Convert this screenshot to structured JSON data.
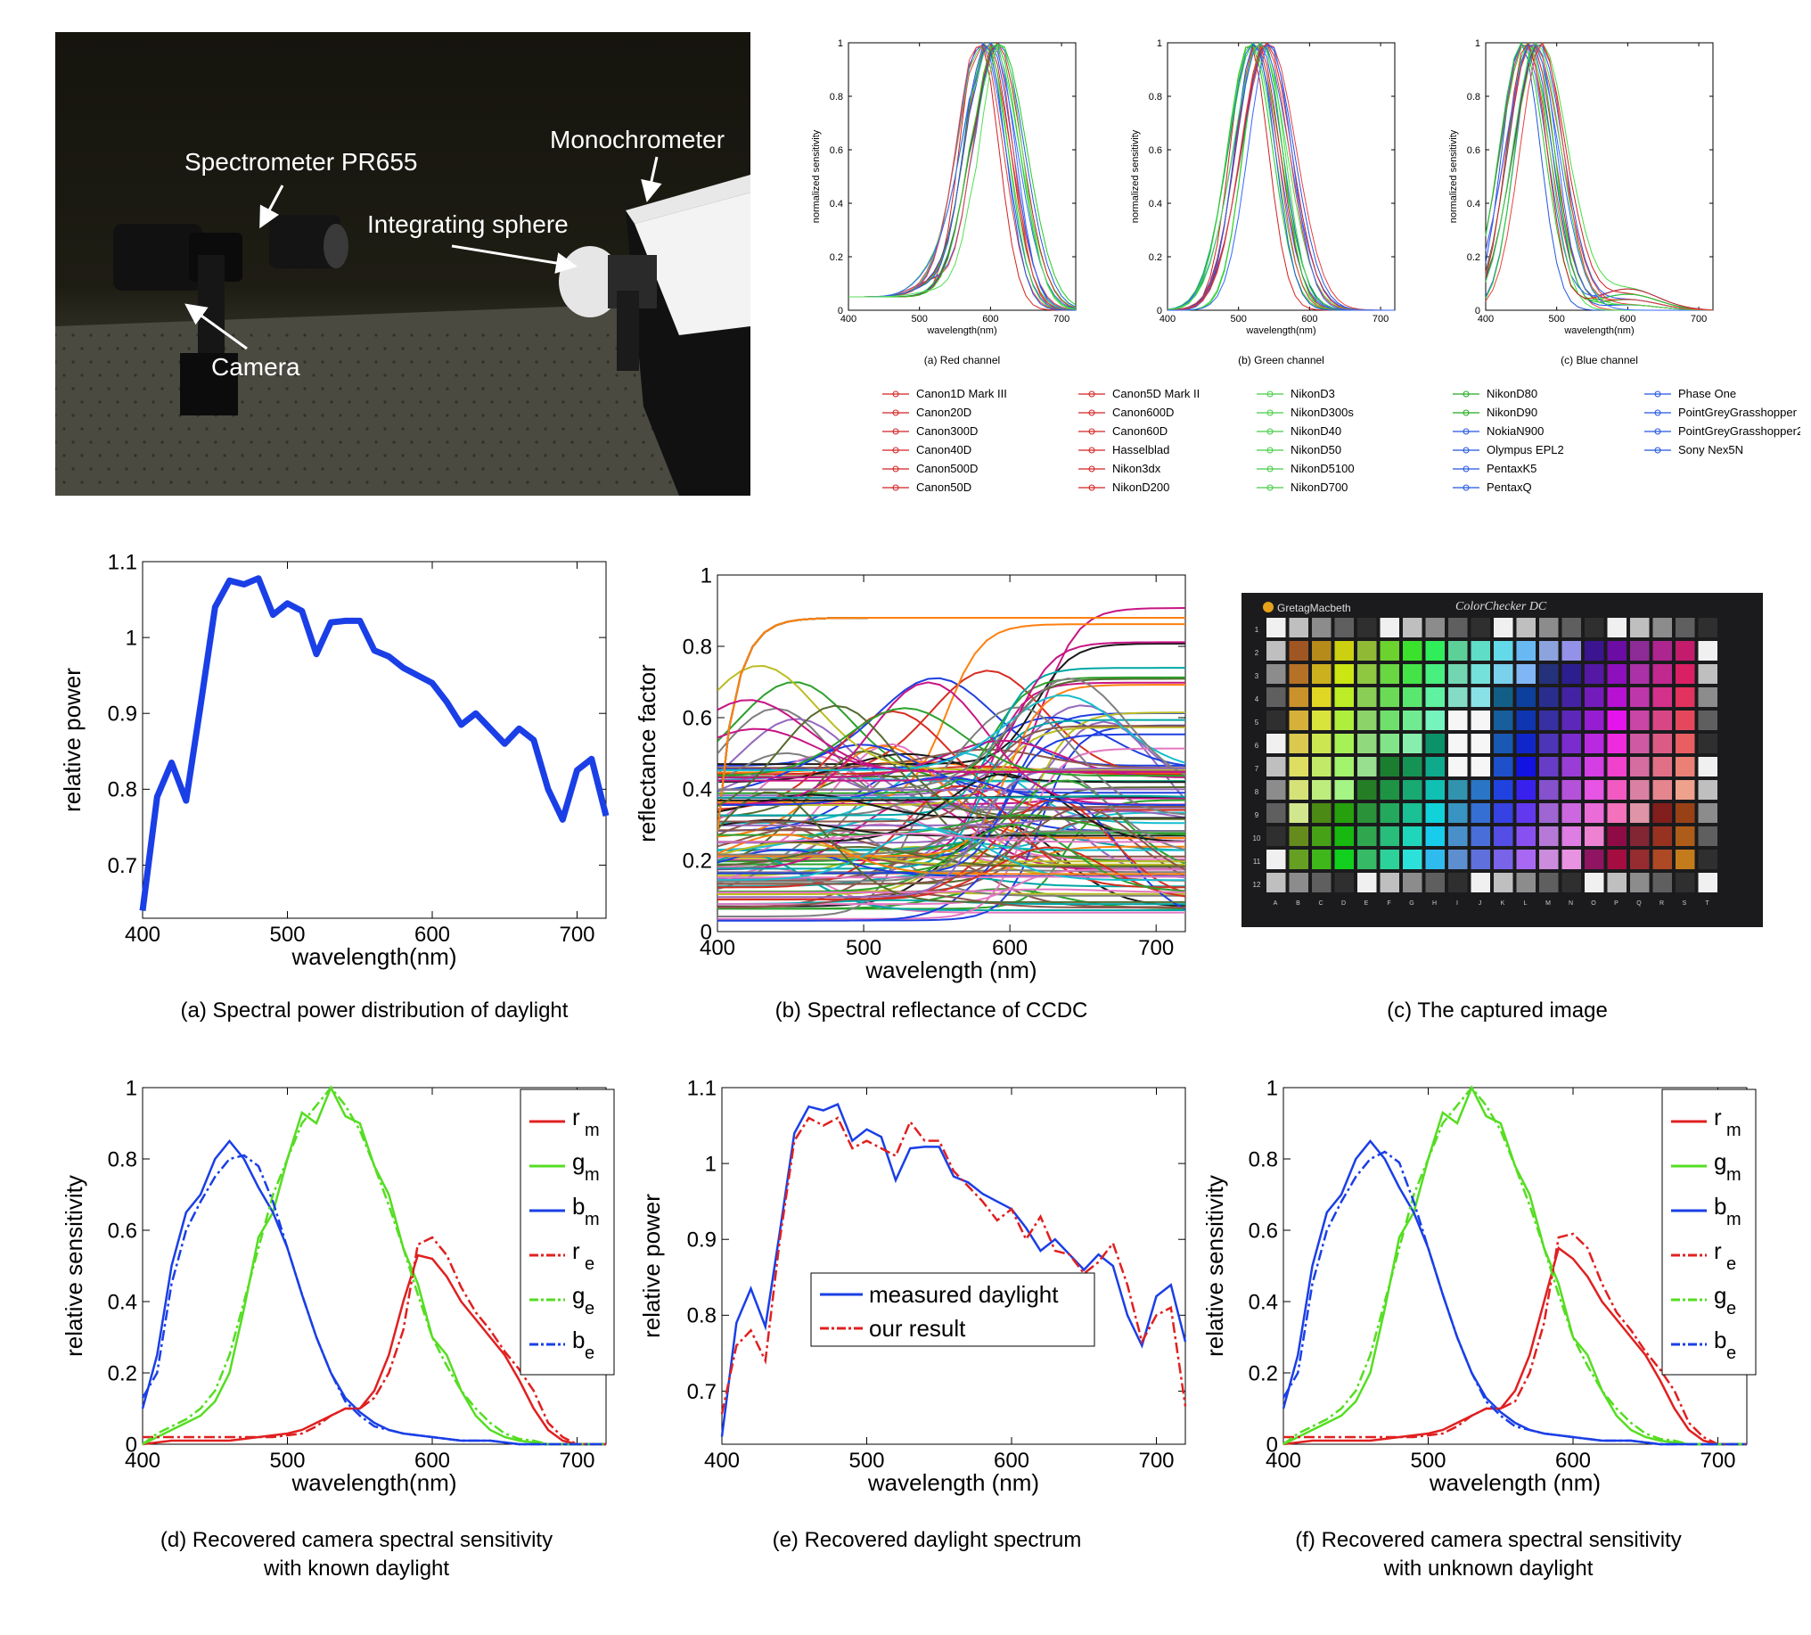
{
  "photo": {
    "labels": {
      "spectrometer": "Spectrometer PR655",
      "monochrometer": "Monochrometer",
      "integrating_sphere": "Integrating sphere",
      "camera": "Camera"
    }
  },
  "captions": {
    "a": "(a) Spectral power distribution of daylight",
    "b": "(b) Spectral reflectance of CCDC",
    "c": "(c) The captured image",
    "d_line1": "(d) Recovered camera spectral sensitivity",
    "d_line2": "with known daylight",
    "e": "(e) Recovered daylight spectrum",
    "f_line1": "(f) Recovered camera spectral sensitivity",
    "f_line2": "with unknown daylight"
  },
  "colorchecker": {
    "brand": "GretagMacbeth",
    "title": "ColorChecker DC",
    "rows": [
      "1",
      "2",
      "3",
      "4",
      "5",
      "6",
      "7",
      "8",
      "9",
      "10",
      "11",
      "12"
    ],
    "cols": [
      "A",
      "B",
      "C",
      "D",
      "E",
      "F",
      "G",
      "H",
      "I",
      "J",
      "K",
      "L",
      "M",
      "N",
      "O",
      "P",
      "Q",
      "R",
      "S",
      "T"
    ]
  },
  "chart_data": [
    {
      "id": "red-channel",
      "type": "line",
      "subtitle": "(a) Red channel",
      "xlabel": "wavelength(nm)",
      "ylabel": "normalized sensitivity",
      "xlim": [
        400,
        720
      ],
      "ylim": [
        0,
        1
      ],
      "xticks": [
        "400",
        "500",
        "600",
        "700"
      ],
      "yticks": [
        "0",
        "0.2",
        "0.4",
        "0.6",
        "0.8",
        "1"
      ],
      "note_series": "28 cameras, peaks ~590-610 nm"
    },
    {
      "id": "green-channel",
      "type": "line",
      "subtitle": "(b) Green channel",
      "xlabel": "wavelength(nm)",
      "ylabel": "normalized sensitivity",
      "xlim": [
        400,
        720
      ],
      "ylim": [
        0,
        1
      ],
      "xticks": [
        "400",
        "500",
        "600",
        "700"
      ],
      "yticks": [
        "0",
        "0.2",
        "0.4",
        "0.6",
        "0.8",
        "1"
      ]
    },
    {
      "id": "blue-channel",
      "type": "line",
      "subtitle": "(c) Blue channel",
      "xlabel": "wavelength(nm)",
      "ylabel": "normalized sensitivity",
      "xlim": [
        400,
        720
      ],
      "ylim": [
        0,
        1
      ],
      "xticks": [
        "400",
        "500",
        "600",
        "700"
      ],
      "yticks": [
        "0",
        "0.2",
        "0.4",
        "0.6",
        "0.8",
        "1"
      ]
    },
    {
      "id": "legend-cameras",
      "type": "legend",
      "entries": [
        "Canon1D Mark III",
        "Canon20D",
        "Canon300D",
        "Canon40D",
        "Canon500D",
        "Canon50D",
        "Canon5D Mark II",
        "Canon600D",
        "Canon60D",
        "Hasselblad",
        "Nikon3dx",
        "NikonD200",
        "NikonD3",
        "NikonD300s",
        "NikonD40",
        "NikonD50",
        "NikonD5100",
        "NikonD700",
        "NikonD80",
        "NikonD90",
        "NokiaN900",
        "Olympus EPL2",
        "PentaxK5",
        "PentaxQ",
        "Phase One",
        "PointGreyGrasshopper",
        "PointGreyGrasshopper2",
        "Sony Nex5N"
      ]
    },
    {
      "id": "daylight-spd",
      "type": "line",
      "xlabel": "wavelength(nm)",
      "ylabel": "relative power",
      "xlim": [
        400,
        720
      ],
      "ylim": [
        0.63,
        1.1
      ],
      "xticks": [
        "400",
        "500",
        "600",
        "700"
      ],
      "yticks": [
        "0.7",
        "0.8",
        "0.9",
        "1",
        "1.1"
      ],
      "x": [
        400,
        410,
        420,
        430,
        440,
        450,
        460,
        470,
        480,
        490,
        500,
        510,
        520,
        530,
        540,
        550,
        560,
        570,
        580,
        590,
        600,
        610,
        620,
        630,
        640,
        650,
        660,
        670,
        680,
        690,
        700,
        710,
        720
      ],
      "values": [
        0.64,
        0.79,
        0.835,
        0.785,
        0.91,
        1.04,
        1.075,
        1.07,
        1.078,
        1.03,
        1.045,
        1.035,
        0.978,
        1.02,
        1.022,
        1.022,
        0.983,
        0.975,
        0.96,
        0.95,
        0.94,
        0.915,
        0.885,
        0.9,
        0.88,
        0.86,
        0.88,
        0.865,
        0.8,
        0.76,
        0.825,
        0.84,
        0.765
      ]
    },
    {
      "id": "reflectance-ccdc",
      "type": "line",
      "xlabel": "wavelength (nm)",
      "ylabel": "reflectance factor",
      "xlim": [
        400,
        720
      ],
      "ylim": [
        0,
        1
      ],
      "xticks": [
        "400",
        "500",
        "600",
        "700"
      ],
      "yticks": [
        "0",
        "0.2",
        "0.4",
        "0.6",
        "0.8",
        "1"
      ]
    },
    {
      "id": "recovered-known",
      "type": "line",
      "xlabel": "wavelength(nm)",
      "ylabel": "relative sensitivity",
      "xlim": [
        400,
        720
      ],
      "ylim": [
        0,
        1
      ],
      "xticks": [
        "400",
        "500",
        "600",
        "700"
      ],
      "yticks": [
        "0",
        "0.2",
        "0.4",
        "0.6",
        "0.8",
        "1"
      ],
      "legend": [
        "r",
        "g",
        "b",
        "r",
        "g",
        "b"
      ],
      "legend_sub": [
        "m",
        "m",
        "m",
        "e",
        "e",
        "e"
      ],
      "x": [
        400,
        410,
        420,
        430,
        440,
        450,
        460,
        470,
        480,
        490,
        500,
        510,
        520,
        530,
        540,
        550,
        560,
        570,
        580,
        590,
        600,
        610,
        620,
        630,
        640,
        650,
        660,
        670,
        680,
        690,
        700,
        710,
        720
      ],
      "series": [
        {
          "values": [
            0,
            0.005,
            0.01,
            0.01,
            0.01,
            0.01,
            0.01,
            0.015,
            0.02,
            0.025,
            0.03,
            0.04,
            0.06,
            0.08,
            0.1,
            0.1,
            0.15,
            0.25,
            0.4,
            0.53,
            0.52,
            0.47,
            0.4,
            0.35,
            0.3,
            0.25,
            0.18,
            0.1,
            0.04,
            0.01,
            0,
            0,
            0
          ]
        },
        {
          "values": [
            0,
            0.02,
            0.04,
            0.06,
            0.08,
            0.12,
            0.2,
            0.38,
            0.58,
            0.65,
            0.8,
            0.93,
            0.9,
            1.0,
            0.92,
            0.9,
            0.78,
            0.7,
            0.55,
            0.45,
            0.3,
            0.25,
            0.15,
            0.08,
            0.04,
            0.02,
            0.01,
            0.005,
            0,
            0,
            0,
            0,
            0
          ]
        },
        {
          "values": [
            0.1,
            0.25,
            0.5,
            0.65,
            0.7,
            0.8,
            0.85,
            0.8,
            0.72,
            0.65,
            0.55,
            0.42,
            0.3,
            0.2,
            0.13,
            0.09,
            0.06,
            0.04,
            0.03,
            0.025,
            0.02,
            0.015,
            0.01,
            0.01,
            0.01,
            0.005,
            0,
            0,
            0,
            0,
            0,
            0,
            0
          ]
        },
        {
          "values": [
            0.02,
            0.02,
            0.02,
            0.02,
            0.02,
            0.02,
            0.02,
            0.02,
            0.02,
            0.02,
            0.025,
            0.03,
            0.05,
            0.08,
            0.1,
            0.1,
            0.13,
            0.2,
            0.32,
            0.56,
            0.58,
            0.53,
            0.44,
            0.37,
            0.32,
            0.26,
            0.21,
            0.15,
            0.06,
            0.02,
            0,
            0,
            0
          ]
        },
        {
          "values": [
            0,
            0.03,
            0.05,
            0.07,
            0.1,
            0.15,
            0.25,
            0.4,
            0.55,
            0.7,
            0.8,
            0.9,
            0.95,
            1.0,
            0.95,
            0.88,
            0.78,
            0.67,
            0.55,
            0.42,
            0.3,
            0.22,
            0.15,
            0.1,
            0.06,
            0.03,
            0.015,
            0.01,
            0,
            0,
            0,
            0,
            0
          ]
        },
        {
          "values": [
            0.13,
            0.2,
            0.45,
            0.6,
            0.68,
            0.75,
            0.8,
            0.81,
            0.78,
            0.68,
            0.55,
            0.42,
            0.3,
            0.2,
            0.12,
            0.08,
            0.05,
            0.04,
            0.03,
            0.025,
            0.02,
            0.015,
            0.01,
            0.01,
            0.01,
            0.005,
            0,
            0,
            0,
            0,
            0,
            0,
            0
          ]
        }
      ]
    },
    {
      "id": "recovered-daylight",
      "type": "line",
      "xlabel": "wavelength (nm)",
      "ylabel": "relative power",
      "xlim": [
        400,
        720
      ],
      "ylim": [
        0.63,
        1.1
      ],
      "xticks": [
        "400",
        "500",
        "600",
        "700"
      ],
      "yticks": [
        "0.7",
        "0.8",
        "0.9",
        "1",
        "1.1"
      ],
      "x": [
        400,
        410,
        420,
        430,
        440,
        450,
        460,
        470,
        480,
        490,
        500,
        510,
        520,
        530,
        540,
        550,
        560,
        570,
        580,
        590,
        600,
        610,
        620,
        630,
        640,
        650,
        660,
        670,
        680,
        690,
        700,
        710,
        720
      ],
      "series": [
        {
          "name": "measured daylight",
          "values": [
            0.64,
            0.79,
            0.835,
            0.785,
            0.91,
            1.04,
            1.075,
            1.07,
            1.078,
            1.03,
            1.045,
            1.035,
            0.978,
            1.02,
            1.022,
            1.022,
            0.983,
            0.975,
            0.96,
            0.95,
            0.94,
            0.915,
            0.885,
            0.9,
            0.88,
            0.86,
            0.88,
            0.865,
            0.8,
            0.76,
            0.825,
            0.84,
            0.765
          ]
        },
        {
          "name": "our result",
          "values": [
            0.67,
            0.76,
            0.78,
            0.74,
            0.9,
            1.03,
            1.06,
            1.05,
            1.06,
            1.02,
            1.03,
            1.02,
            1.01,
            1.055,
            1.03,
            1.03,
            0.99,
            0.97,
            0.95,
            0.925,
            0.94,
            0.9,
            0.93,
            0.885,
            0.88,
            0.855,
            0.87,
            0.895,
            0.84,
            0.765,
            0.8,
            0.81,
            0.68
          ]
        }
      ]
    },
    {
      "id": "recovered-unknown",
      "type": "line",
      "xlabel": "wavelength (nm)",
      "ylabel": "relative sensitivity",
      "xlim": [
        400,
        720
      ],
      "ylim": [
        0,
        1
      ],
      "xticks": [
        "400",
        "500",
        "600",
        "700"
      ],
      "yticks": [
        "0",
        "0.2",
        "0.4",
        "0.6",
        "0.8",
        "1"
      ],
      "legend": [
        "r",
        "g",
        "b",
        "r",
        "g",
        "b"
      ],
      "legend_sub": [
        "m",
        "m",
        "m",
        "e",
        "e",
        "e"
      ],
      "x": [
        400,
        410,
        420,
        430,
        440,
        450,
        460,
        470,
        480,
        490,
        500,
        510,
        520,
        530,
        540,
        550,
        560,
        570,
        580,
        590,
        600,
        610,
        620,
        630,
        640,
        650,
        660,
        670,
        680,
        690,
        700,
        710,
        720
      ],
      "series": [
        {
          "values": [
            0,
            0.005,
            0.01,
            0.01,
            0.01,
            0.01,
            0.01,
            0.015,
            0.02,
            0.025,
            0.03,
            0.04,
            0.06,
            0.08,
            0.1,
            0.1,
            0.15,
            0.25,
            0.4,
            0.55,
            0.52,
            0.47,
            0.4,
            0.35,
            0.3,
            0.25,
            0.18,
            0.1,
            0.04,
            0.01,
            0,
            0,
            0
          ]
        },
        {
          "values": [
            0,
            0.02,
            0.04,
            0.06,
            0.08,
            0.12,
            0.2,
            0.38,
            0.58,
            0.65,
            0.8,
            0.93,
            0.9,
            1.0,
            0.92,
            0.9,
            0.78,
            0.7,
            0.55,
            0.45,
            0.3,
            0.25,
            0.15,
            0.08,
            0.04,
            0.02,
            0.01,
            0.005,
            0,
            0,
            0,
            0,
            0
          ]
        },
        {
          "values": [
            0.1,
            0.25,
            0.5,
            0.65,
            0.7,
            0.8,
            0.85,
            0.8,
            0.72,
            0.65,
            0.55,
            0.42,
            0.3,
            0.2,
            0.13,
            0.09,
            0.06,
            0.04,
            0.03,
            0.025,
            0.02,
            0.015,
            0.01,
            0.01,
            0.01,
            0.005,
            0,
            0,
            0,
            0,
            0,
            0,
            0
          ]
        },
        {
          "values": [
            0.02,
            0.02,
            0.02,
            0.02,
            0.02,
            0.02,
            0.02,
            0.02,
            0.02,
            0.02,
            0.025,
            0.03,
            0.05,
            0.08,
            0.1,
            0.1,
            0.12,
            0.2,
            0.34,
            0.58,
            0.59,
            0.55,
            0.45,
            0.37,
            0.32,
            0.26,
            0.21,
            0.15,
            0.06,
            0.02,
            0,
            0,
            0
          ]
        },
        {
          "values": [
            0,
            0.03,
            0.05,
            0.07,
            0.1,
            0.15,
            0.25,
            0.4,
            0.55,
            0.7,
            0.8,
            0.9,
            0.95,
            1.0,
            0.95,
            0.88,
            0.78,
            0.67,
            0.55,
            0.42,
            0.3,
            0.22,
            0.15,
            0.1,
            0.06,
            0.03,
            0.015,
            0.01,
            0,
            0,
            0,
            0,
            0
          ]
        },
        {
          "values": [
            0.13,
            0.2,
            0.45,
            0.6,
            0.68,
            0.75,
            0.8,
            0.82,
            0.79,
            0.68,
            0.55,
            0.42,
            0.3,
            0.2,
            0.12,
            0.08,
            0.05,
            0.04,
            0.03,
            0.025,
            0.02,
            0.015,
            0.01,
            0.01,
            0.01,
            0.005,
            0,
            0,
            0,
            0,
            0,
            0,
            0
          ]
        }
      ]
    }
  ]
}
